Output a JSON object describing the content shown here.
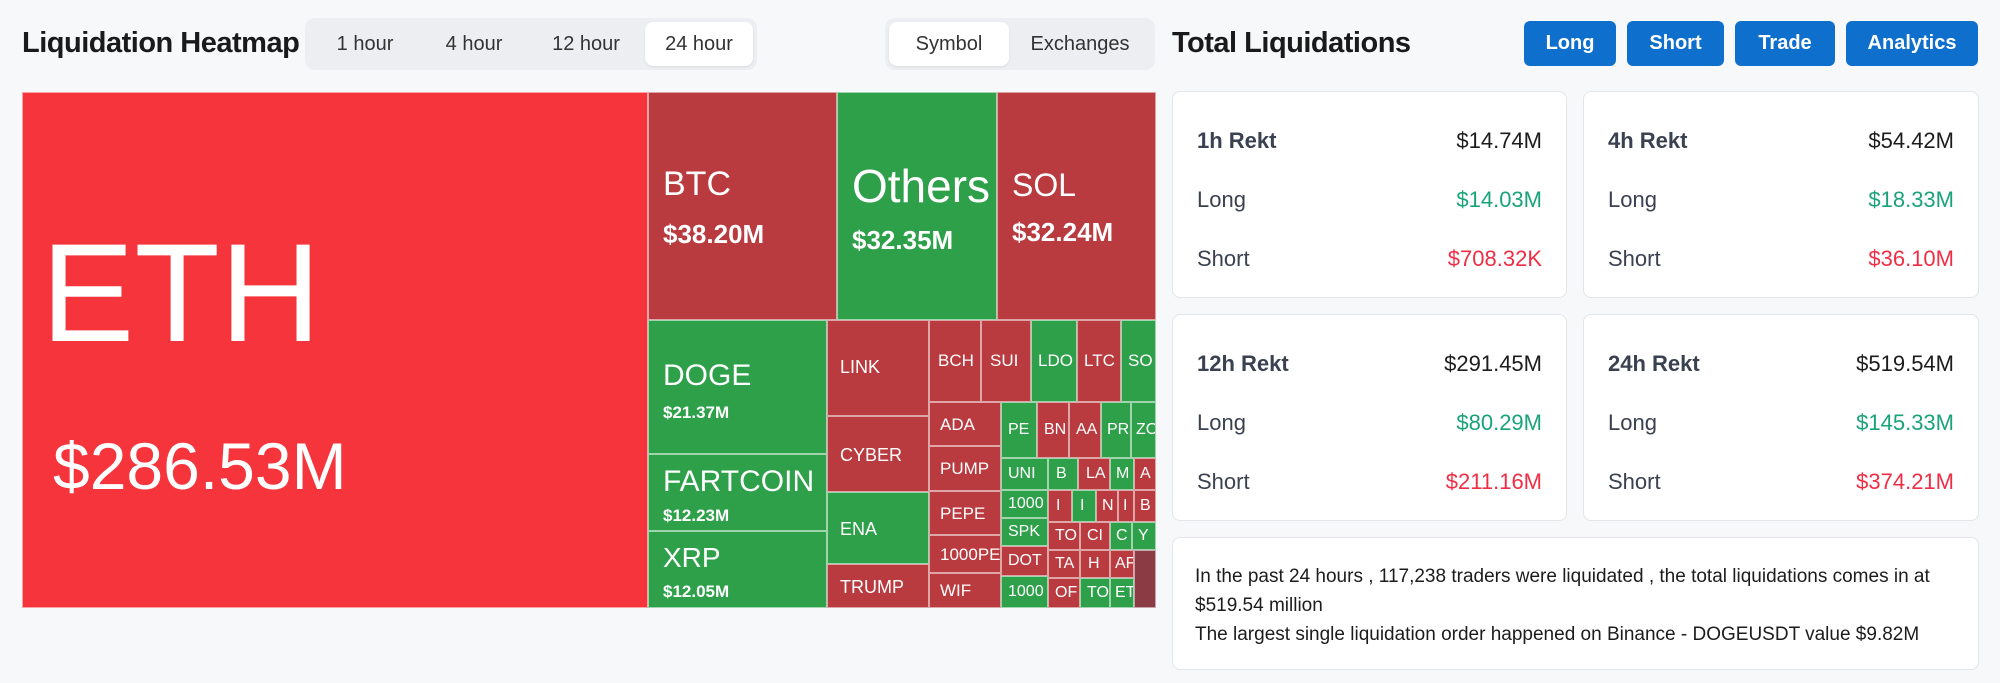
{
  "heatmap": {
    "title": "Liquidation Heatmap",
    "time_tabs": [
      "1 hour",
      "4 hour",
      "12 hour",
      "24 hour"
    ],
    "active_time_tab": "24 hour",
    "view_tabs": [
      "Symbol",
      "Exchanges"
    ],
    "active_view_tab": "Symbol",
    "tiles": [
      {
        "symbol": "ETH",
        "value": "$286.53M",
        "color": "#f5353b"
      },
      {
        "symbol": "BTC",
        "value": "$38.20M",
        "color": "#b93a3f"
      },
      {
        "symbol": "Others",
        "value": "$32.35M",
        "color": "#2ea04a"
      },
      {
        "symbol": "SOL",
        "value": "$32.24M",
        "color": "#b93a3f"
      },
      {
        "symbol": "DOGE",
        "value": "$21.37M",
        "color": "#2ea04a"
      },
      {
        "symbol": "FARTCOIN",
        "value": "$12.23M",
        "color": "#2ea04a"
      },
      {
        "symbol": "XRP",
        "value": "$12.05M",
        "color": "#2ea04a"
      },
      {
        "symbol": "LINK",
        "value": "",
        "color": "#b93a3f"
      },
      {
        "symbol": "CYBER",
        "value": "",
        "color": "#b93a3f"
      },
      {
        "symbol": "ENA",
        "value": "",
        "color": "#2ea04a"
      },
      {
        "symbol": "TRUMP",
        "value": "",
        "color": "#b93a3f"
      },
      {
        "symbol": "BCH",
        "value": "",
        "color": "#b93a3f"
      },
      {
        "symbol": "SUI",
        "value": "",
        "color": "#b93a3f"
      },
      {
        "symbol": "LDO",
        "value": "",
        "color": "#2ea04a"
      },
      {
        "symbol": "LTC",
        "value": "",
        "color": "#b93a3f"
      },
      {
        "symbol": "SO",
        "value": "",
        "color": "#2ea04a"
      },
      {
        "symbol": "ADA",
        "value": "",
        "color": "#b93a3f"
      },
      {
        "symbol": "PUMP",
        "value": "",
        "color": "#b93a3f"
      },
      {
        "symbol": "PEPE",
        "value": "",
        "color": "#b93a3f"
      },
      {
        "symbol": "1000PE",
        "value": "",
        "color": "#b93a3f"
      },
      {
        "symbol": "WIF",
        "value": "",
        "color": "#b93a3f"
      },
      {
        "symbol": "PE",
        "value": "",
        "color": "#2ea04a"
      },
      {
        "symbol": "BN",
        "value": "",
        "color": "#b93a3f"
      },
      {
        "symbol": "AA",
        "value": "",
        "color": "#b93a3f"
      },
      {
        "symbol": "PR",
        "value": "",
        "color": "#2ea04a"
      },
      {
        "symbol": "ZO",
        "value": "",
        "color": "#2ea04a"
      },
      {
        "symbol": "UNI",
        "value": "",
        "color": "#2ea04a"
      },
      {
        "symbol": "1000",
        "value": "",
        "color": "#2ea04a"
      },
      {
        "symbol": "SPK",
        "value": "",
        "color": "#2ea04a"
      },
      {
        "symbol": "DOT",
        "value": "",
        "color": "#b93a3f"
      },
      {
        "symbol": "1000",
        "value": "",
        "color": "#2ea04a"
      },
      {
        "symbol": "B",
        "value": "",
        "color": "#2ea04a"
      },
      {
        "symbol": "LA",
        "value": "",
        "color": "#b93a3f"
      },
      {
        "symbol": "M",
        "value": "",
        "color": "#2ea04a"
      },
      {
        "symbol": "A",
        "value": "",
        "color": "#b93a3f"
      },
      {
        "symbol": "I",
        "value": "",
        "color": "#b93a3f"
      },
      {
        "symbol": "I",
        "value": "",
        "color": "#2ea04a"
      },
      {
        "symbol": "N",
        "value": "",
        "color": "#b93a3f"
      },
      {
        "symbol": "I",
        "value": "",
        "color": "#b93a3f"
      },
      {
        "symbol": "B",
        "value": "",
        "color": "#b93a3f"
      },
      {
        "symbol": "TO",
        "value": "",
        "color": "#b93a3f"
      },
      {
        "symbol": "CI",
        "value": "",
        "color": "#b93a3f"
      },
      {
        "symbol": "C",
        "value": "",
        "color": "#2ea04a"
      },
      {
        "symbol": "Y",
        "value": "",
        "color": "#2ea04a"
      },
      {
        "symbol": "TA",
        "value": "",
        "color": "#b93a3f"
      },
      {
        "symbol": "H",
        "value": "",
        "color": "#b93a3f"
      },
      {
        "symbol": "AF",
        "value": "",
        "color": "#b93a3f"
      },
      {
        "symbol": "OF",
        "value": "",
        "color": "#b93a3f"
      },
      {
        "symbol": "TO",
        "value": "",
        "color": "#2ea04a"
      },
      {
        "symbol": "ET",
        "value": "",
        "color": "#2ea04a"
      }
    ]
  },
  "total": {
    "title": "Total Liquidations",
    "buttons": [
      "Long",
      "Short",
      "Trade",
      "Analytics"
    ],
    "cards": [
      {
        "label": "1h Rekt",
        "total": "$14.74M",
        "long_label": "Long",
        "long": "$14.03M",
        "short_label": "Short",
        "short": "$708.32K"
      },
      {
        "label": "4h Rekt",
        "total": "$54.42M",
        "long_label": "Long",
        "long": "$18.33M",
        "short_label": "Short",
        "short": "$36.10M"
      },
      {
        "label": "12h Rekt",
        "total": "$291.45M",
        "long_label": "Long",
        "long": "$80.29M",
        "short_label": "Short",
        "short": "$211.16M"
      },
      {
        "label": "24h Rekt",
        "total": "$519.54M",
        "long_label": "Long",
        "long": "$145.33M",
        "short_label": "Short",
        "short": "$374.21M"
      }
    ],
    "summary_line1": "In the past 24 hours , 117,238 traders were liquidated , the total liquidations comes in at $519.54 million",
    "summary_line2": "The largest single liquidation order happened on Binance - DOGEUSDT value $9.82M"
  },
  "colors": {
    "long": "#1aa37a",
    "short": "#ef2e45",
    "accent": "#0f6fcd",
    "tile_red": "#b93a3f",
    "tile_bright_red": "#f5353b",
    "tile_green": "#2ea04a"
  }
}
